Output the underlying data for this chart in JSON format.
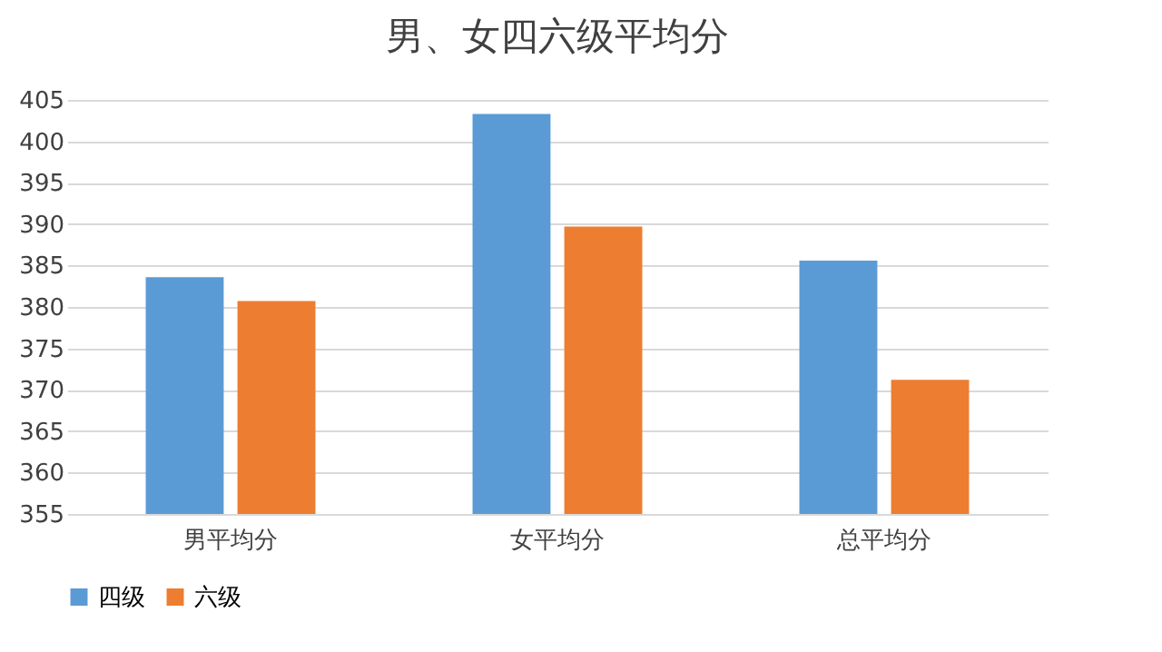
{
  "chart_data": {
    "type": "bar",
    "title": "男、女四六级平均分",
    "categories": [
      "男平均分",
      "女平均分",
      "总平均分"
    ],
    "series": [
      {
        "name": "四级",
        "color": "#5b9bd5",
        "values": [
          383.6,
          403.3,
          385.6
        ]
      },
      {
        "name": "六级",
        "color": "#ed7d31",
        "values": [
          380.7,
          389.7,
          371.2
        ]
      }
    ],
    "ylim": [
      355,
      405
    ],
    "yticks": [
      355,
      360,
      365,
      370,
      375,
      380,
      385,
      390,
      395,
      400,
      405
    ],
    "grid": "y",
    "legend": "bottom"
  }
}
